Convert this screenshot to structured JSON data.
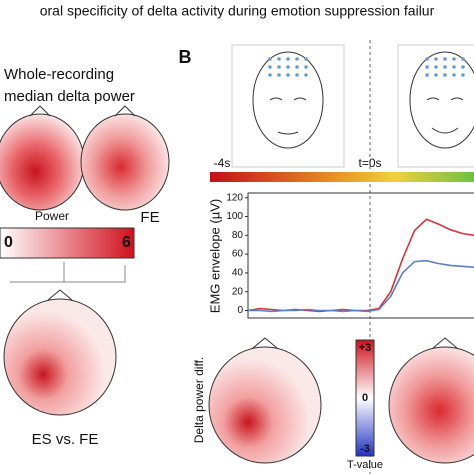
{
  "figure_title": "oral specificity of delta activity during emotion suppression failur",
  "panel_a": {
    "heading_line1": "Whole-recording",
    "heading_line2": "median delta power",
    "power_label": "Power",
    "fe_label": "FE",
    "colorbar_min": "0",
    "colorbar_max": "6",
    "comparison_label": "ES vs. FE"
  },
  "panel_b": {
    "label": "B",
    "time_start": "-4s",
    "time_zero": "t=0s",
    "diff_label": "Delta power diff.",
    "tvalue_max": "+3",
    "tvalue_mid": "0",
    "tvalue_min": "-3",
    "tvalue_label": "T-value"
  },
  "chart_data": {
    "type": "line",
    "y_label": "EMG envelope (µV)",
    "ylim": [
      -8,
      125
    ],
    "yticks": [
      0,
      20,
      40,
      60,
      80,
      100,
      120
    ],
    "series": [
      {
        "color": "#d9343a",
        "values": [
          0,
          2,
          1,
          0,
          1,
          0,
          -1,
          0,
          1,
          0,
          0,
          2,
          20,
          55,
          85,
          97,
          92,
          86,
          82,
          80
        ]
      },
      {
        "color": "#5b7fc9",
        "values": [
          0,
          0,
          -1,
          0,
          0,
          1,
          0,
          0,
          -1,
          0,
          -1,
          1,
          15,
          40,
          52,
          53,
          50,
          48,
          47,
          46
        ]
      }
    ]
  }
}
